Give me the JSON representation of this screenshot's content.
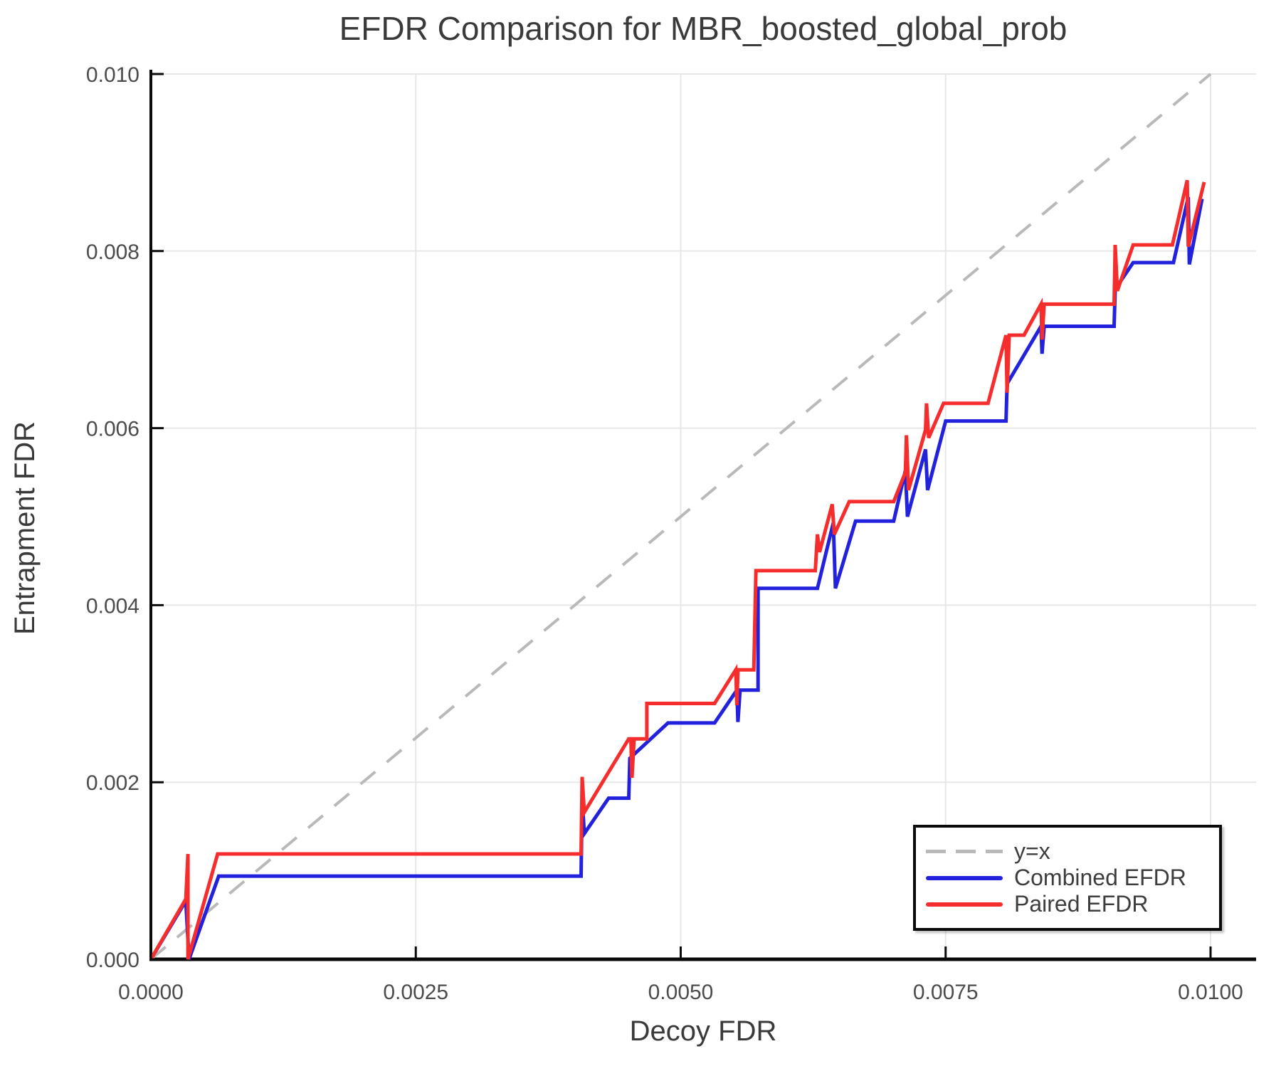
{
  "chart_data": {
    "type": "line",
    "title": "EFDR Comparison for MBR_boosted_global_prob",
    "xlabel": "Decoy FDR",
    "ylabel": "Entrapment FDR",
    "xlim": [
      0.0,
      0.01
    ],
    "ylim": [
      0.0,
      0.01
    ],
    "grid": true,
    "legend_position": "bottom-right",
    "x_ticks": [
      0.0,
      0.0025,
      0.005,
      0.0075,
      0.01
    ],
    "x_tick_labels": [
      "0.0000",
      "0.0025",
      "0.0050",
      "0.0075",
      "0.0100"
    ],
    "y_ticks": [
      0.0,
      0.002,
      0.004,
      0.006,
      0.008,
      0.01
    ],
    "y_tick_labels": [
      "0.000",
      "0.002",
      "0.004",
      "0.006",
      "0.008",
      "0.010"
    ],
    "series": [
      {
        "name": "y=x",
        "color": "#b9b9b9",
        "style": "dashed",
        "width": 4,
        "points": [
          [
            0.0,
            0.0
          ],
          [
            0.01,
            0.01
          ]
        ]
      },
      {
        "name": "Combined EFDR",
        "color": "#2222dd",
        "style": "solid",
        "width": 5,
        "points": [
          [
            0.0,
            0.0
          ],
          [
            0.00033,
            0.00066
          ],
          [
            0.00036,
            0.0
          ],
          [
            0.00064,
            0.00094
          ],
          [
            0.00406,
            0.00094
          ],
          [
            0.00407,
            0.00183
          ],
          [
            0.00409,
            0.00142
          ],
          [
            0.00432,
            0.00182
          ],
          [
            0.00451,
            0.00182
          ],
          [
            0.00452,
            0.00227
          ],
          [
            0.00488,
            0.00267
          ],
          [
            0.00532,
            0.00267
          ],
          [
            0.00553,
            0.00304
          ],
          [
            0.00554,
            0.00268
          ],
          [
            0.00556,
            0.00304
          ],
          [
            0.00573,
            0.00304
          ],
          [
            0.00573,
            0.00419
          ],
          [
            0.00629,
            0.00419
          ],
          [
            0.00644,
            0.00493
          ],
          [
            0.00646,
            0.00419
          ],
          [
            0.00665,
            0.00495
          ],
          [
            0.00701,
            0.00495
          ],
          [
            0.00712,
            0.00552
          ],
          [
            0.00714,
            0.005
          ],
          [
            0.00731,
            0.00576
          ],
          [
            0.00733,
            0.0053
          ],
          [
            0.0075,
            0.00608
          ],
          [
            0.00807,
            0.00608
          ],
          [
            0.00808,
            0.0065
          ],
          [
            0.0084,
            0.00715
          ],
          [
            0.00841,
            0.00684
          ],
          [
            0.00843,
            0.00715
          ],
          [
            0.00909,
            0.00715
          ],
          [
            0.0091,
            0.00757
          ],
          [
            0.00927,
            0.00787
          ],
          [
            0.00965,
            0.00787
          ],
          [
            0.00979,
            0.00861
          ],
          [
            0.0098,
            0.00785
          ],
          [
            0.00992,
            0.00859
          ]
        ]
      },
      {
        "name": "Paired EFDR",
        "color": "#f62d2d",
        "style": "solid",
        "width": 5,
        "points": [
          [
            0.0,
            0.0
          ],
          [
            0.00033,
            0.00068
          ],
          [
            0.00035,
            0.00119
          ],
          [
            0.00035,
            0.0
          ],
          [
            0.00063,
            0.00119
          ],
          [
            0.00406,
            0.00119
          ],
          [
            0.00407,
            0.00206
          ],
          [
            0.00409,
            0.00166
          ],
          [
            0.00451,
            0.00249
          ],
          [
            0.00453,
            0.00249
          ],
          [
            0.00454,
            0.00205
          ],
          [
            0.00456,
            0.00249
          ],
          [
            0.00468,
            0.00249
          ],
          [
            0.00468,
            0.00289
          ],
          [
            0.00532,
            0.00289
          ],
          [
            0.00552,
            0.00327
          ],
          [
            0.00553,
            0.00287
          ],
          [
            0.00554,
            0.00327
          ],
          [
            0.00569,
            0.00327
          ],
          [
            0.00571,
            0.00439
          ],
          [
            0.00627,
            0.00439
          ],
          [
            0.00629,
            0.0048
          ],
          [
            0.00631,
            0.0046
          ],
          [
            0.00643,
            0.00514
          ],
          [
            0.00645,
            0.0048
          ],
          [
            0.00659,
            0.00517
          ],
          [
            0.00701,
            0.00517
          ],
          [
            0.00712,
            0.0055
          ],
          [
            0.00713,
            0.00592
          ],
          [
            0.00715,
            0.0053
          ],
          [
            0.00731,
            0.00598
          ],
          [
            0.00732,
            0.00628
          ],
          [
            0.00734,
            0.00589
          ],
          [
            0.00748,
            0.00628
          ],
          [
            0.0079,
            0.00628
          ],
          [
            0.00807,
            0.00705
          ],
          [
            0.00808,
            0.0064
          ],
          [
            0.0081,
            0.00705
          ],
          [
            0.00824,
            0.00705
          ],
          [
            0.0084,
            0.0074
          ],
          [
            0.00841,
            0.007
          ],
          [
            0.00843,
            0.0074
          ],
          [
            0.00909,
            0.0074
          ],
          [
            0.0091,
            0.00807
          ],
          [
            0.00912,
            0.00755
          ],
          [
            0.00927,
            0.00807
          ],
          [
            0.00964,
            0.00807
          ],
          [
            0.00978,
            0.0088
          ],
          [
            0.00979,
            0.00805
          ],
          [
            0.00994,
            0.00878
          ]
        ]
      }
    ]
  },
  "colors": {
    "background": "#ffffff",
    "gridline": "#e7e7e7",
    "spine": "#0a0a0a",
    "tick_label": "#4c4c4c",
    "title_text": "#3a3a3a",
    "axis_label_text": "#3a3a3a",
    "legend_border": "#0a0a0a",
    "legend_text": "#3d3d3d"
  }
}
